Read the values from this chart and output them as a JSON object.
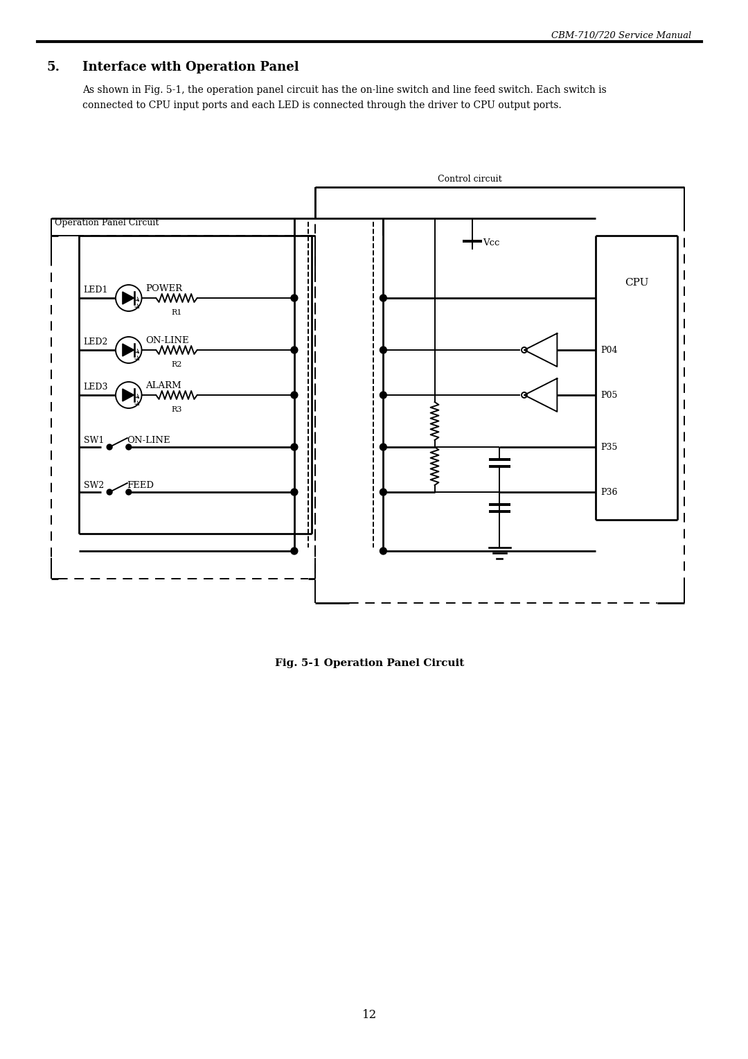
{
  "title": "CBM-710/720 Service Manual",
  "section_num": "5.",
  "section_title": "Interface with Operation Panel",
  "body_text_1": "As shown in Fig. 5-1, the operation panel circuit has the on-line switch and line feed switch. Each switch is",
  "body_text_2": "connected to CPU input ports and each LED is connected through the driver to CPU output ports.",
  "fig_caption": "Fig. 5-1 Operation Panel Circuit",
  "page_num": "12",
  "bg_color": "#ffffff"
}
